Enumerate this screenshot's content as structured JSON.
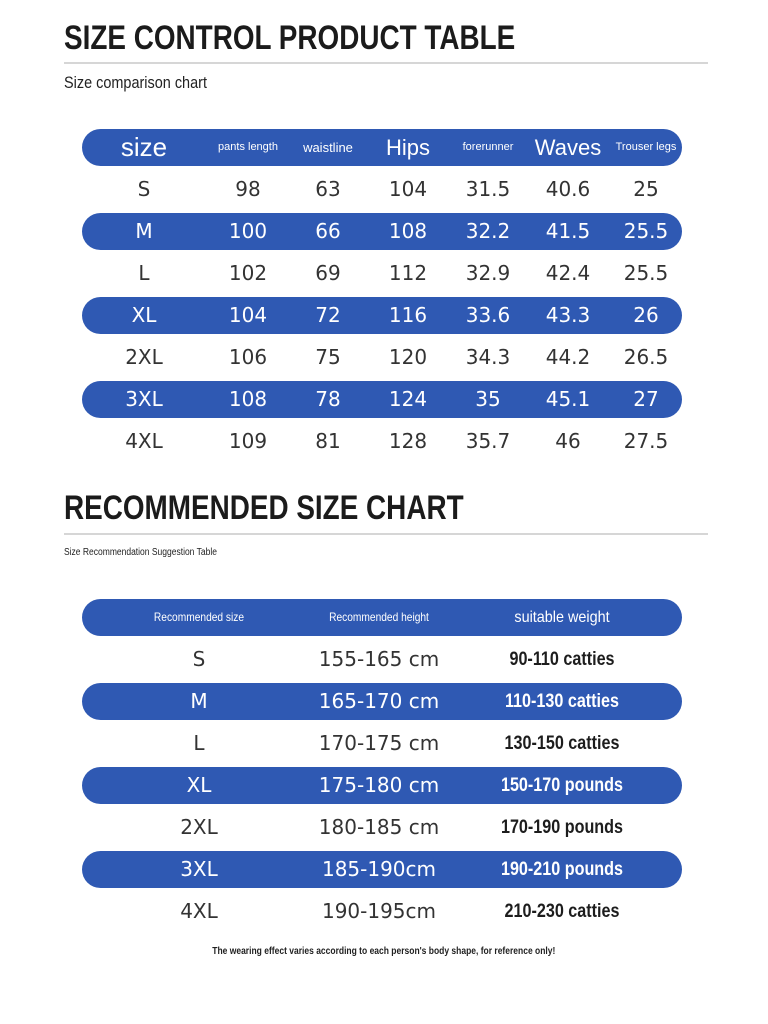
{
  "section1": {
    "title": "SIZE CONTROL PRODUCT TABLE",
    "subtitle": "Size comparison chart",
    "headers": [
      "size",
      "pants length",
      "waistline",
      "Hips",
      "forerunner",
      "Waves",
      "Trouser legs"
    ],
    "rows": [
      [
        "S",
        "98",
        "63",
        "104",
        "31.5",
        "40.6",
        "25"
      ],
      [
        "M",
        "100",
        "66",
        "108",
        "32.2",
        "41.5",
        "25.5"
      ],
      [
        "L",
        "102",
        "69",
        "112",
        "32.9",
        "42.4",
        "25.5"
      ],
      [
        "XL",
        "104",
        "72",
        "116",
        "33.6",
        "43.3",
        "26"
      ],
      [
        "2XL",
        "106",
        "75",
        "120",
        "34.3",
        "44.2",
        "26.5"
      ],
      [
        "3XL",
        "108",
        "78",
        "124",
        "35",
        "45.1",
        "27"
      ],
      [
        "4XL",
        "109",
        "81",
        "128",
        "35.7",
        "46",
        "27.5"
      ]
    ]
  },
  "section2": {
    "title": "RECOMMENDED SIZE CHART",
    "subtitle": "Size Recommendation Suggestion Table",
    "headers": [
      "Recommended size",
      "Recommended height",
      "suitable weight"
    ],
    "rows": [
      [
        "S",
        "155-165 cm",
        "90-110 catties"
      ],
      [
        "M",
        "165-170 cm",
        "110-130 catties"
      ],
      [
        "L",
        "170-175 cm",
        "130-150 catties"
      ],
      [
        "XL",
        "175-180 cm",
        "150-170 pounds"
      ],
      [
        "2XL",
        "180-185 cm",
        "170-190 pounds"
      ],
      [
        "3XL",
        "185-190cm",
        "190-210 pounds"
      ],
      [
        "4XL",
        "190-195cm",
        "210-230 catties"
      ]
    ]
  },
  "footnote": "The wearing effect varies according to each person's body shape, for reference only!",
  "colors": {
    "band": "#2f59b3",
    "text": "#222222",
    "rule": "#d6d6d6"
  }
}
